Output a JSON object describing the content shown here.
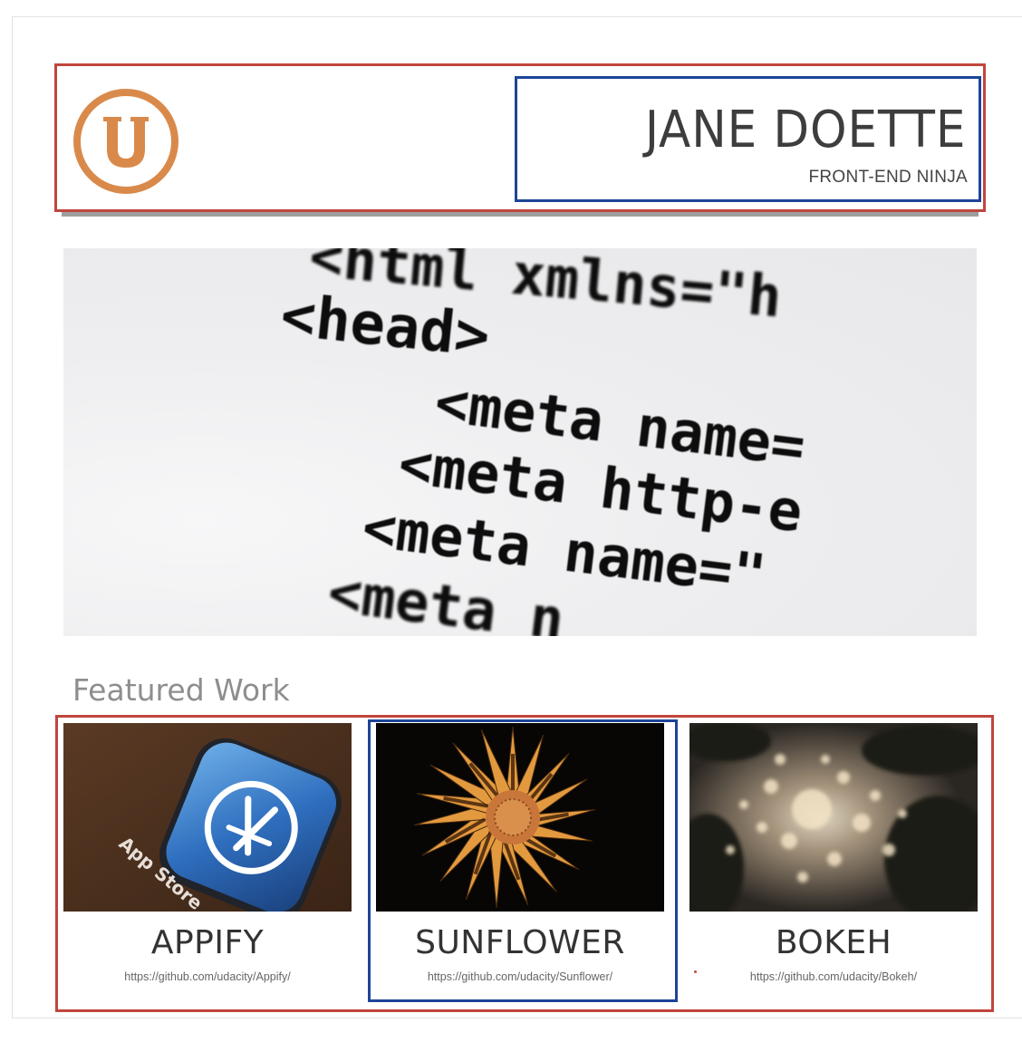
{
  "header": {
    "logo_letter": "U",
    "name": "JANE DOETTE",
    "role": "FRONT-END NINJA"
  },
  "hero": {
    "code_lines": [
      "<html xmlns=\"h",
      "<head>",
      "<meta name=",
      "<meta http-e",
      "<meta name=\"",
      "<meta n"
    ]
  },
  "featured": {
    "label": "Featured Work",
    "items": [
      {
        "title": "APPIFY",
        "url": "https://github.com/udacity/Appify/",
        "thumb_text": "App Store"
      },
      {
        "title": "SUNFLOWER",
        "url": "https://github.com/udacity/Sunflower/"
      },
      {
        "title": "BOKEH",
        "url": "https://github.com/udacity/Bokeh/"
      }
    ]
  },
  "colors": {
    "accent_orange": "#d98a4b",
    "outline_red": "#c0463d",
    "outline_blue": "#1d4598"
  }
}
